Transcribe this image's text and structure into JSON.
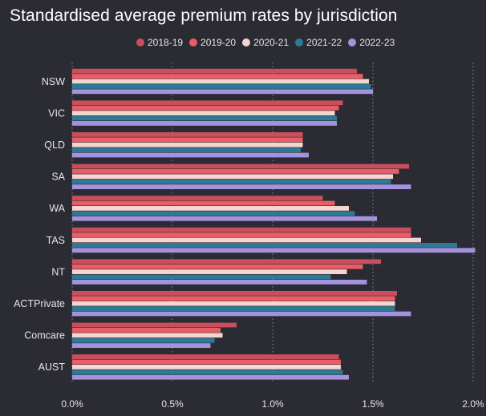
{
  "chart_data": {
    "type": "bar",
    "orientation": "horizontal",
    "title": "Standardised average premium rates by jurisdiction",
    "xlabel": "",
    "ylabel": "",
    "xlim": [
      0,
      2.0
    ],
    "x_ticks": [
      "0.0%",
      "0.5%",
      "1.0%",
      "1.5%",
      "2.0%"
    ],
    "grid": true,
    "legend_position": "top",
    "categories": [
      "NSW",
      "VIC",
      "QLD",
      "SA",
      "WA",
      "TAS",
      "NT",
      "ACTPrivate",
      "Comcare",
      "AUST"
    ],
    "series": [
      {
        "name": "2018-19",
        "color": "#c94f5c",
        "values": [
          1.42,
          1.35,
          1.15,
          1.68,
          1.25,
          1.69,
          1.54,
          1.62,
          0.82,
          1.33
        ]
      },
      {
        "name": "2019-20",
        "color": "#ea5c66",
        "values": [
          1.45,
          1.33,
          1.15,
          1.63,
          1.31,
          1.69,
          1.45,
          1.61,
          0.74,
          1.34
        ]
      },
      {
        "name": "2020-21",
        "color": "#f6d4cf",
        "values": [
          1.48,
          1.31,
          1.15,
          1.6,
          1.38,
          1.74,
          1.37,
          1.61,
          0.75,
          1.34
        ]
      },
      {
        "name": "2021-22",
        "color": "#2e7a94",
        "values": [
          1.49,
          1.32,
          1.14,
          1.59,
          1.41,
          1.92,
          1.29,
          1.61,
          0.71,
          1.35
        ]
      },
      {
        "name": "2022-23",
        "color": "#a592df",
        "values": [
          1.5,
          1.32,
          1.18,
          1.69,
          1.52,
          2.01,
          1.47,
          1.69,
          0.69,
          1.38
        ]
      }
    ]
  },
  "colors": {
    "background": "#2b2b33",
    "grid": "#8a8a92",
    "text": "#e6e6e6"
  }
}
